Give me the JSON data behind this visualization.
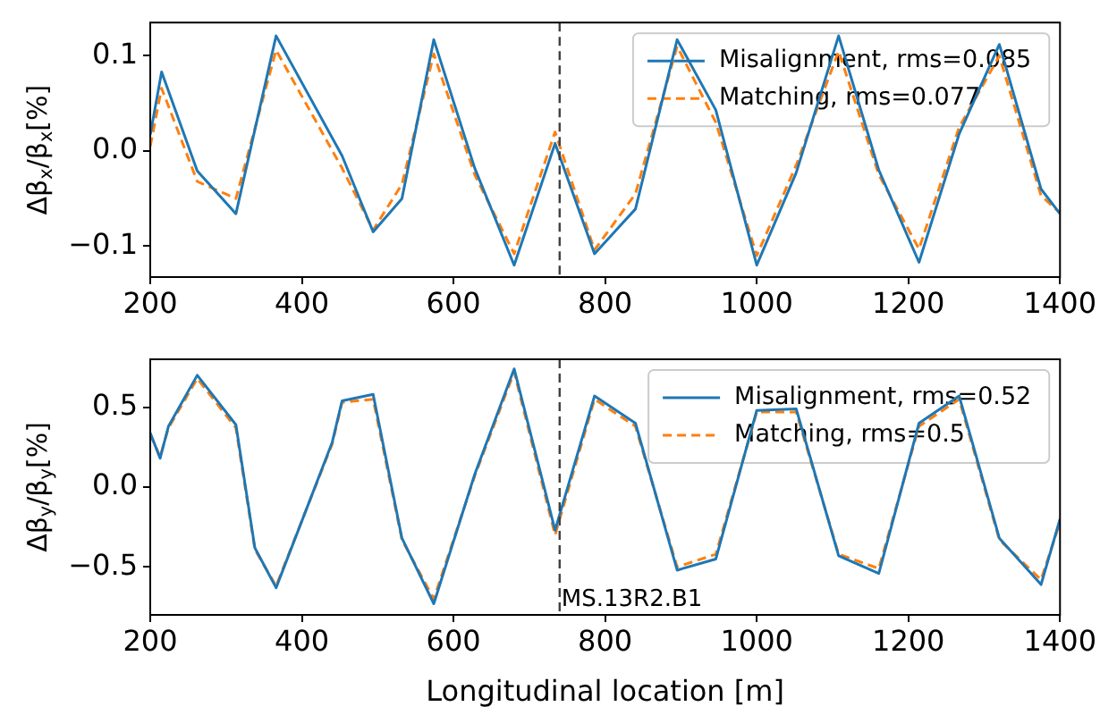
{
  "chart_data": [
    {
      "type": "line",
      "ylabel": "Δβ$_{x}$/β$_{x}$[%]",
      "xlim": [
        200,
        1400
      ],
      "xticks": [
        200,
        400,
        600,
        800,
        1000,
        1200,
        1400
      ],
      "ylim": [
        -0.1325,
        0.135
      ],
      "yticks": [
        {
          "value": -0.1,
          "label": "−0.1"
        },
        {
          "value": 0,
          "label": "0.0"
        },
        {
          "value": 0.1,
          "label": "0.1"
        }
      ],
      "grid": false,
      "legend": "top right",
      "marker": "none",
      "ref_lines": [
        {
          "axis": "x",
          "value": 740,
          "color": "#404040",
          "line_style": "dashed"
        }
      ],
      "series": [
        {
          "name": "Misalignment, rms=0.085",
          "color": "#1f77b4",
          "line_style": "solid",
          "x": [
            200,
            215,
            262,
            313,
            366,
            453,
            494,
            532,
            574,
            628,
            680,
            734,
            786,
            840,
            895,
            946,
            1000,
            1052,
            1108,
            1161,
            1214,
            1267,
            1320,
            1375,
            1400
          ],
          "values": [
            0.017,
            0.083,
            -0.021,
            -0.066,
            0.121,
            -0.005,
            -0.085,
            -0.05,
            0.117,
            -0.018,
            -0.12,
            0.008,
            -0.108,
            -0.061,
            0.117,
            0.043,
            -0.12,
            -0.023,
            0.121,
            -0.02,
            -0.117,
            0.018,
            0.112,
            -0.04,
            -0.066
          ]
        },
        {
          "name": "Matching, rms=0.077",
          "color": "#ff7f0e",
          "line_style": "dashed",
          "x": [
            200,
            215,
            262,
            313,
            366,
            453,
            494,
            532,
            574,
            628,
            680,
            734,
            786,
            840,
            895,
            946,
            1000,
            1052,
            1108,
            1161,
            1214,
            1267,
            1320,
            1375,
            1400
          ],
          "values": [
            0.005,
            0.066,
            -0.032,
            -0.05,
            0.106,
            -0.018,
            -0.083,
            -0.035,
            0.102,
            -0.025,
            -0.108,
            0.02,
            -0.104,
            -0.045,
            0.11,
            0.03,
            -0.11,
            -0.015,
            0.105,
            -0.025,
            -0.103,
            0.025,
            0.1,
            -0.047,
            -0.065
          ]
        }
      ]
    },
    {
      "type": "line",
      "xlabel": "Longitudinal location [m]",
      "ylabel": "Δβ$_{y}$/β$_{y}$[%]",
      "xlim": [
        200,
        1400
      ],
      "xticks": [
        200,
        400,
        600,
        800,
        1000,
        1200,
        1400
      ],
      "ylim": [
        -0.8,
        0.8
      ],
      "yticks": [
        {
          "value": -0.5,
          "label": "−0.5"
        },
        {
          "value": 0,
          "label": "0.0"
        },
        {
          "value": 0.5,
          "label": "0.5"
        }
      ],
      "grid": false,
      "legend": "top right",
      "marker": "none",
      "ref_lines": [
        {
          "axis": "x",
          "value": 740,
          "label": "MS.13R2.B1",
          "color": "#404040",
          "line_style": "dashed"
        }
      ],
      "series": [
        {
          "name": "Misalignment, rms=0.52",
          "color": "#1f77b4",
          "line_style": "solid",
          "x": [
            200,
            213,
            224,
            262,
            313,
            338,
            366,
            440,
            453,
            494,
            532,
            574,
            628,
            680,
            734,
            786,
            840,
            895,
            946,
            1000,
            1052,
            1108,
            1161,
            1214,
            1267,
            1320,
            1375,
            1400
          ],
          "values": [
            0.34,
            0.18,
            0.38,
            0.7,
            0.39,
            -0.38,
            -0.63,
            0.28,
            0.54,
            0.58,
            -0.32,
            -0.73,
            0.08,
            0.74,
            -0.27,
            0.57,
            0.4,
            -0.52,
            -0.45,
            0.48,
            0.49,
            -0.43,
            -0.54,
            0.4,
            0.57,
            -0.32,
            -0.61,
            -0.2
          ]
        },
        {
          "name": "Matching, rms=0.5",
          "color": "#ff7f0e",
          "line_style": "dashed",
          "x": [
            200,
            213,
            224,
            262,
            313,
            338,
            366,
            440,
            453,
            494,
            532,
            574,
            628,
            680,
            734,
            786,
            840,
            895,
            946,
            1000,
            1052,
            1108,
            1161,
            1214,
            1267,
            1320,
            1375,
            1400
          ],
          "values": [
            0.33,
            0.19,
            0.37,
            0.68,
            0.37,
            -0.39,
            -0.62,
            0.27,
            0.53,
            0.55,
            -0.33,
            -0.7,
            0.07,
            0.72,
            -0.3,
            0.55,
            0.38,
            -0.5,
            -0.42,
            0.47,
            0.47,
            -0.42,
            -0.51,
            0.38,
            0.55,
            -0.33,
            -0.58,
            -0.22
          ]
        }
      ]
    }
  ]
}
